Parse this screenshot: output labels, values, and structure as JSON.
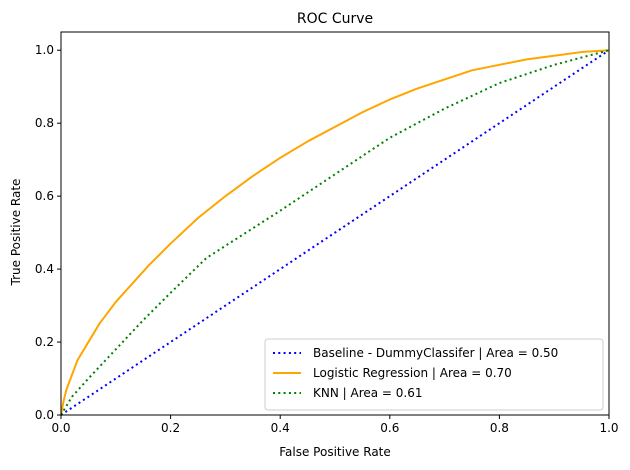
{
  "chart_data": {
    "type": "line",
    "title": "ROC Curve",
    "xlabel": "False Positive Rate",
    "ylabel": "True Positive Rate",
    "xlim": [
      0.0,
      1.0
    ],
    "ylim": [
      0.0,
      1.05
    ],
    "x_ticks": [
      "0.0",
      "0.2",
      "0.4",
      "0.6",
      "0.8",
      "1.0"
    ],
    "y_ticks": [
      "0.0",
      "0.2",
      "0.4",
      "0.6",
      "0.8",
      "1.0"
    ],
    "grid": false,
    "legend_position": "bottom-right",
    "series": [
      {
        "name": "Baseline - DummyClassifer | Area = 0.50",
        "color": "#0000ff",
        "style": "dotted",
        "x": [
          0.0,
          1.0
        ],
        "y": [
          0.0,
          1.0
        ]
      },
      {
        "name": "Logistic Regression | Area = 0.70",
        "color": "#ffa500",
        "style": "solid",
        "x": [
          0.0,
          0.005,
          0.01,
          0.02,
          0.03,
          0.05,
          0.07,
          0.1,
          0.13,
          0.16,
          0.2,
          0.25,
          0.3,
          0.35,
          0.4,
          0.45,
          0.5,
          0.55,
          0.6,
          0.65,
          0.7,
          0.75,
          0.8,
          0.85,
          0.9,
          0.95,
          1.0
        ],
        "y": [
          0.0,
          0.04,
          0.07,
          0.11,
          0.15,
          0.2,
          0.25,
          0.31,
          0.36,
          0.41,
          0.47,
          0.54,
          0.6,
          0.655,
          0.705,
          0.75,
          0.79,
          0.83,
          0.865,
          0.895,
          0.92,
          0.945,
          0.96,
          0.975,
          0.985,
          0.995,
          1.0
        ]
      },
      {
        "name": "KNN | Area = 0.61",
        "color": "#008000",
        "style": "dotted",
        "x": [
          0.0,
          0.02,
          0.05,
          0.1,
          0.15,
          0.2,
          0.265,
          0.4,
          0.5,
          0.6,
          0.7,
          0.8,
          0.9,
          1.0
        ],
        "y": [
          0.0,
          0.05,
          0.1,
          0.18,
          0.26,
          0.335,
          0.43,
          0.56,
          0.66,
          0.76,
          0.84,
          0.91,
          0.96,
          1.0
        ]
      }
    ]
  }
}
